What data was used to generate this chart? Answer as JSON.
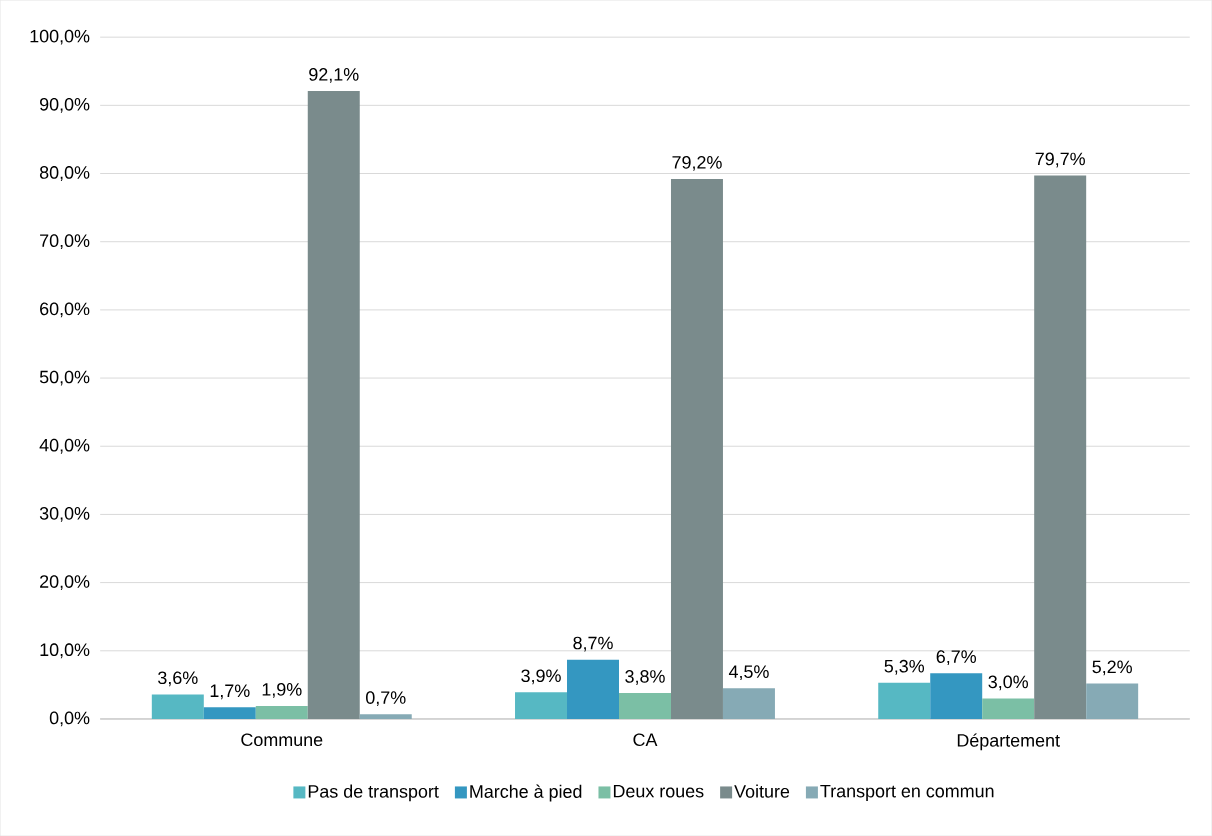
{
  "chart_data": {
    "type": "bar",
    "categories": [
      "Commune",
      "CA",
      "Département"
    ],
    "series": [
      {
        "name": "Pas de transport",
        "color": "#56b8c3",
        "values": [
          3.6,
          3.9,
          5.3
        ],
        "value_labels": [
          "3,6%",
          "3,9%",
          "5,3%"
        ]
      },
      {
        "name": "Marche à pied",
        "color": "#3497c1",
        "values": [
          1.7,
          8.7,
          6.7
        ],
        "value_labels": [
          "1,7%",
          "8,7%",
          "6,7%"
        ]
      },
      {
        "name": "Deux roues",
        "color": "#7bbfa5",
        "values": [
          1.9,
          3.8,
          3.0
        ],
        "value_labels": [
          "1,9%",
          "3,8%",
          "3,0%"
        ]
      },
      {
        "name": "Voiture",
        "color": "#7a8b8c",
        "values": [
          92.1,
          79.2,
          79.7
        ],
        "value_labels": [
          "92,1%",
          "79,2%",
          "79,7%"
        ]
      },
      {
        "name": "Transport en commun",
        "color": "#86aab5",
        "values": [
          0.7,
          4.5,
          5.2
        ],
        "value_labels": [
          "0,7%",
          "4,5%",
          "5,2%"
        ]
      }
    ],
    "ylim": [
      0,
      100
    ],
    "yticks": [
      {
        "value": 0,
        "label": "0,0%"
      },
      {
        "value": 10,
        "label": "10,0%"
      },
      {
        "value": 20,
        "label": "20,0%"
      },
      {
        "value": 30,
        "label": "30,0%"
      },
      {
        "value": 40,
        "label": "40,0%"
      },
      {
        "value": 50,
        "label": "50,0%"
      },
      {
        "value": 60,
        "label": "60,0%"
      },
      {
        "value": 70,
        "label": "70,0%"
      },
      {
        "value": 80,
        "label": "80,0%"
      },
      {
        "value": 90,
        "label": "90,0%"
      },
      {
        "value": 100,
        "label": "100,0%"
      }
    ],
    "grid": "y",
    "legend": "bottom"
  }
}
